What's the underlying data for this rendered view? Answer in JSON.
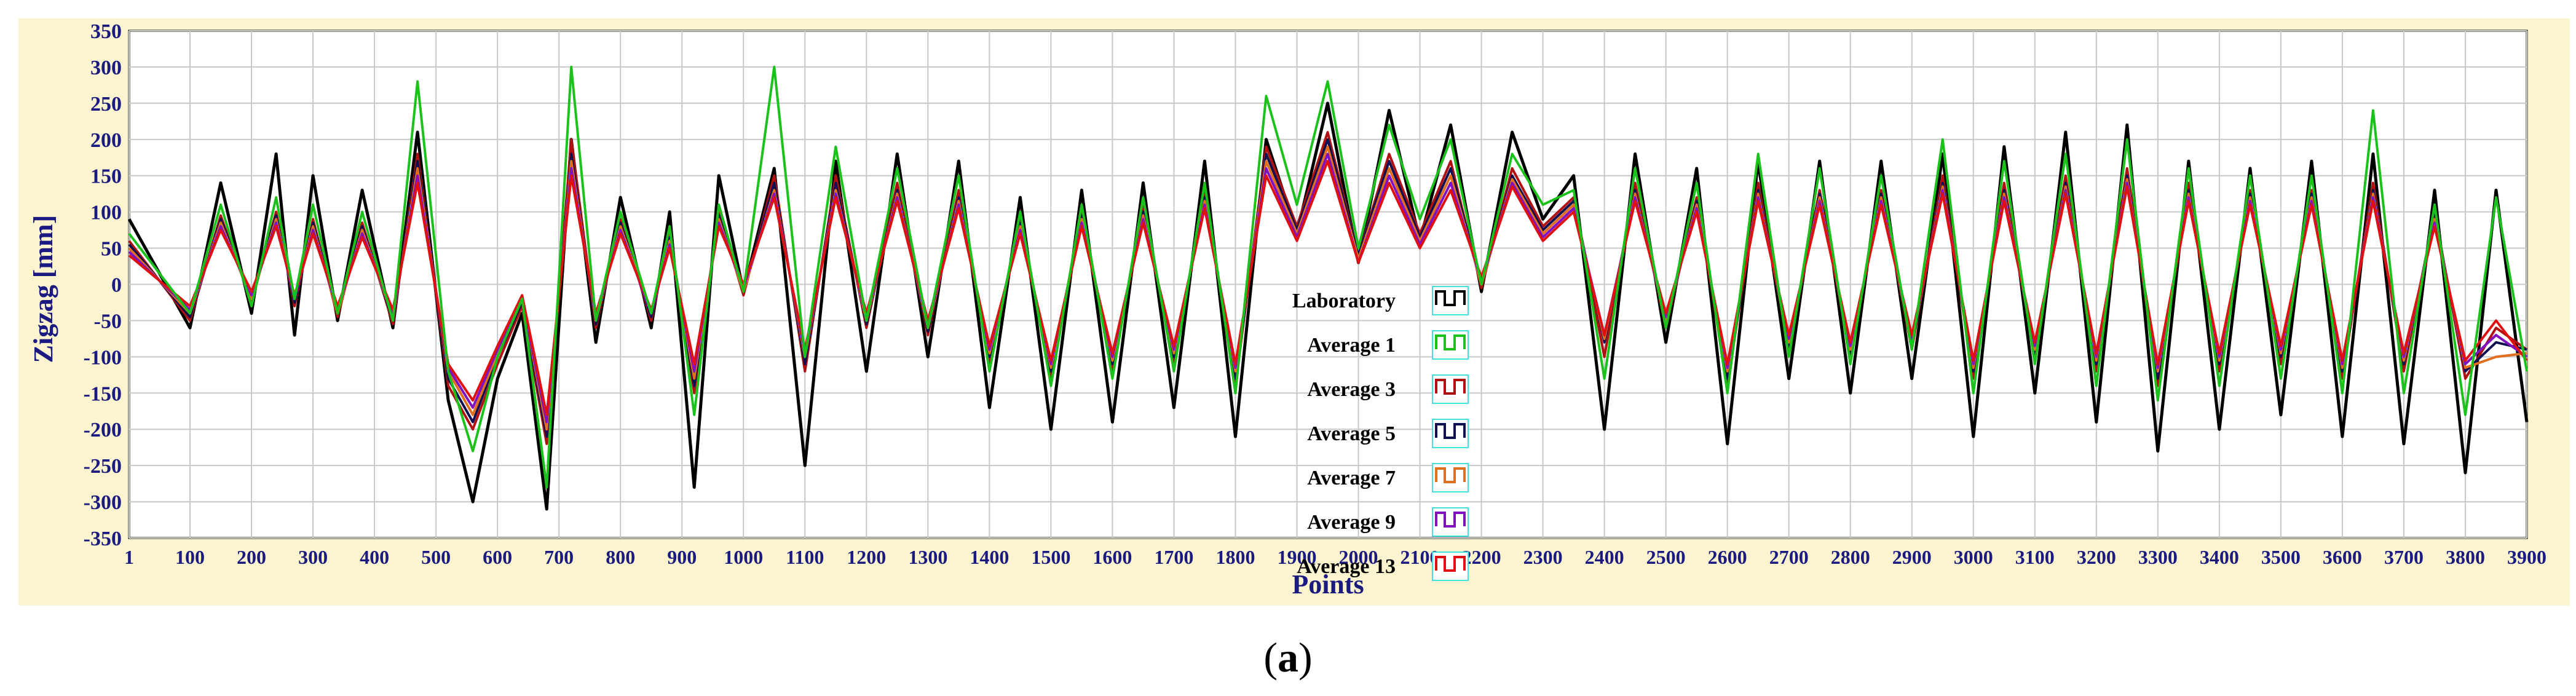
{
  "chart_data": {
    "type": "line",
    "title": "",
    "xlabel": "Points",
    "ylabel": "Zigzag [mm]",
    "xlim": [
      1,
      3900
    ],
    "ylim": [
      -350,
      350
    ],
    "x_ticks": [
      "1",
      "100",
      "200",
      "300",
      "400",
      "500",
      "600",
      "700",
      "800",
      "900",
      "1000",
      "1100",
      "1200",
      "1300",
      "1400",
      "1500",
      "1600",
      "1700",
      "1800",
      "1900",
      "2000",
      "2100",
      "2200",
      "2300",
      "2400",
      "2500",
      "2600",
      "2700",
      "2800",
      "2900",
      "3000",
      "3100",
      "3200",
      "3300",
      "3400",
      "3500",
      "3600",
      "3700",
      "3800",
      "3900"
    ],
    "y_ticks": [
      "350",
      "300",
      "250",
      "200",
      "150",
      "100",
      "50",
      "0",
      "-50",
      "-100",
      "-150",
      "-200",
      "-250",
      "-300",
      "-350"
    ],
    "grid": true,
    "legend_position": "center",
    "x": [
      1,
      100,
      150,
      200,
      240,
      270,
      300,
      340,
      380,
      430,
      470,
      520,
      560,
      600,
      640,
      680,
      720,
      760,
      800,
      850,
      880,
      920,
      960,
      1000,
      1050,
      1100,
      1150,
      1200,
      1250,
      1300,
      1350,
      1400,
      1450,
      1500,
      1550,
      1600,
      1650,
      1700,
      1750,
      1800,
      1850,
      1900,
      1950,
      2000,
      2050,
      2100,
      2150,
      2200,
      2250,
      2300,
      2350,
      2400,
      2450,
      2500,
      2550,
      2600,
      2650,
      2700,
      2750,
      2800,
      2850,
      2900,
      2950,
      3000,
      3050,
      3100,
      3150,
      3200,
      3250,
      3300,
      3350,
      3400,
      3450,
      3500,
      3550,
      3600,
      3650,
      3700,
      3750,
      3800,
      3850,
      3900
    ],
    "series": [
      {
        "name": "Laboratory",
        "color": "#000000",
        "values": [
          90,
          -60,
          140,
          -40,
          180,
          -70,
          150,
          -50,
          130,
          -60,
          210,
          -160,
          -300,
          -130,
          -40,
          -310,
          200,
          -80,
          120,
          -60,
          100,
          -280,
          150,
          -10,
          160,
          -250,
          170,
          -120,
          180,
          -100,
          170,
          -170,
          120,
          -200,
          130,
          -190,
          140,
          -170,
          170,
          -210,
          200,
          70,
          250,
          30,
          240,
          60,
          220,
          -10,
          210,
          90,
          150,
          -200,
          180,
          -80,
          160,
          -220,
          170,
          -130,
          170,
          -150,
          170,
          -130,
          180,
          -210,
          190,
          -150,
          210,
          -190,
          220,
          -230,
          170,
          -200,
          160,
          -180,
          170,
          -210,
          180,
          -220,
          130,
          -260,
          130,
          -190
        ]
      },
      {
        "name": "Average 1",
        "color": "#1cc21c",
        "values": [
          70,
          -40,
          110,
          -30,
          120,
          -20,
          110,
          -40,
          100,
          -50,
          280,
          -120,
          -230,
          -100,
          -20,
          -280,
          300,
          -50,
          100,
          -40,
          80,
          -180,
          110,
          -10,
          300,
          -100,
          190,
          -50,
          160,
          -60,
          150,
          -120,
          100,
          -140,
          110,
          -130,
          120,
          -120,
          140,
          -150,
          260,
          110,
          280,
          50,
          220,
          90,
          200,
          0,
          180,
          110,
          130,
          -130,
          160,
          -60,
          140,
          -150,
          180,
          -100,
          160,
          -110,
          150,
          -90,
          200,
          -150,
          170,
          -110,
          180,
          -140,
          200,
          -160,
          160,
          -140,
          150,
          -130,
          150,
          -150,
          240,
          -150,
          110,
          -180,
          120,
          -120
        ]
      },
      {
        "name": "Average 3",
        "color": "#b01010",
        "values": [
          60,
          -50,
          95,
          -25,
          100,
          -30,
          90,
          -45,
          85,
          -55,
          180,
          -140,
          -200,
          -110,
          -30,
          -220,
          200,
          -60,
          90,
          -50,
          70,
          -150,
          100,
          -15,
          150,
          -120,
          150,
          -60,
          140,
          -70,
          130,
          -110,
          90,
          -130,
          100,
          -120,
          110,
          -110,
          130,
          -140,
          190,
          80,
          210,
          40,
          180,
          70,
          170,
          -5,
          160,
          80,
          120,
          -100,
          140,
          -60,
          120,
          -140,
          140,
          -90,
          130,
          -100,
          130,
          -90,
          150,
          -130,
          140,
          -100,
          150,
          -120,
          160,
          -140,
          140,
          -120,
          130,
          -110,
          130,
          -130,
          140,
          -120,
          100,
          -130,
          -60,
          -90
        ]
      },
      {
        "name": "Average 5",
        "color": "#101050",
        "values": [
          55,
          -45,
          90,
          -20,
          95,
          -25,
          85,
          -40,
          80,
          -50,
          170,
          -130,
          -190,
          -100,
          -25,
          -210,
          180,
          -55,
          85,
          -45,
          65,
          -140,
          95,
          -10,
          140,
          -110,
          140,
          -55,
          130,
          -65,
          120,
          -100,
          85,
          -120,
          95,
          -110,
          100,
          -100,
          120,
          -130,
          180,
          75,
          200,
          40,
          170,
          65,
          160,
          0,
          150,
          75,
          115,
          -80,
          130,
          -55,
          115,
          -130,
          130,
          -85,
          125,
          -95,
          125,
          -85,
          140,
          -120,
          130,
          -95,
          140,
          -110,
          150,
          -130,
          130,
          -110,
          125,
          -100,
          125,
          -120,
          130,
          -110,
          95,
          -120,
          -80,
          -90
        ]
      },
      {
        "name": "Average 7",
        "color": "#e07020",
        "values": [
          50,
          -40,
          85,
          -20,
          90,
          -20,
          80,
          -40,
          75,
          -45,
          160,
          -120,
          -180,
          -95,
          -20,
          -200,
          170,
          -50,
          80,
          -40,
          60,
          -130,
          90,
          -10,
          130,
          -100,
          130,
          -50,
          125,
          -60,
          115,
          -95,
          80,
          -115,
          90,
          -105,
          95,
          -95,
          115,
          -120,
          170,
          70,
          190,
          35,
          160,
          60,
          150,
          0,
          145,
          70,
          110,
          -75,
          125,
          -50,
          110,
          -120,
          125,
          -80,
          120,
          -90,
          120,
          -80,
          135,
          -115,
          125,
          -90,
          135,
          -105,
          145,
          -120,
          125,
          -105,
          120,
          -95,
          120,
          -115,
          125,
          -105,
          90,
          -115,
          -100,
          -95
        ]
      },
      {
        "name": "Average 9",
        "color": "#8010c0",
        "values": [
          45,
          -35,
          80,
          -15,
          85,
          -20,
          75,
          -35,
          70,
          -40,
          150,
          -115,
          -170,
          -90,
          -20,
          -190,
          160,
          -45,
          75,
          -40,
          55,
          -120,
          85,
          -5,
          125,
          -95,
          125,
          -45,
          120,
          -55,
          110,
          -90,
          75,
          -110,
          85,
          -100,
          90,
          -90,
          110,
          -115,
          160,
          65,
          180,
          30,
          150,
          55,
          140,
          5,
          140,
          65,
          105,
          -70,
          120,
          -45,
          105,
          -115,
          120,
          -75,
          115,
          -85,
          115,
          -75,
          130,
          -110,
          120,
          -85,
          130,
          -100,
          140,
          -115,
          120,
          -100,
          115,
          -90,
          115,
          -110,
          120,
          -100,
          85,
          -110,
          -70,
          -100
        ]
      },
      {
        "name": "Average 13",
        "color": "#e01010",
        "values": [
          40,
          -30,
          75,
          -10,
          80,
          -15,
          70,
          -30,
          65,
          -35,
          140,
          -110,
          -160,
          -85,
          -15,
          -180,
          150,
          -40,
          70,
          -35,
          50,
          -110,
          80,
          0,
          120,
          -90,
          120,
          -40,
          115,
          -50,
          105,
          -85,
          70,
          -105,
          80,
          -95,
          85,
          -85,
          105,
          -110,
          150,
          60,
          170,
          30,
          140,
          50,
          130,
          10,
          135,
          60,
          100,
          -70,
          115,
          -40,
          100,
          -110,
          115,
          -70,
          110,
          -80,
          110,
          -70,
          125,
          -105,
          115,
          -80,
          125,
          -95,
          135,
          -110,
          115,
          -95,
          110,
          -85,
          110,
          -105,
          115,
          -95,
          80,
          -105,
          -50,
          -105
        ]
      }
    ]
  }
}
